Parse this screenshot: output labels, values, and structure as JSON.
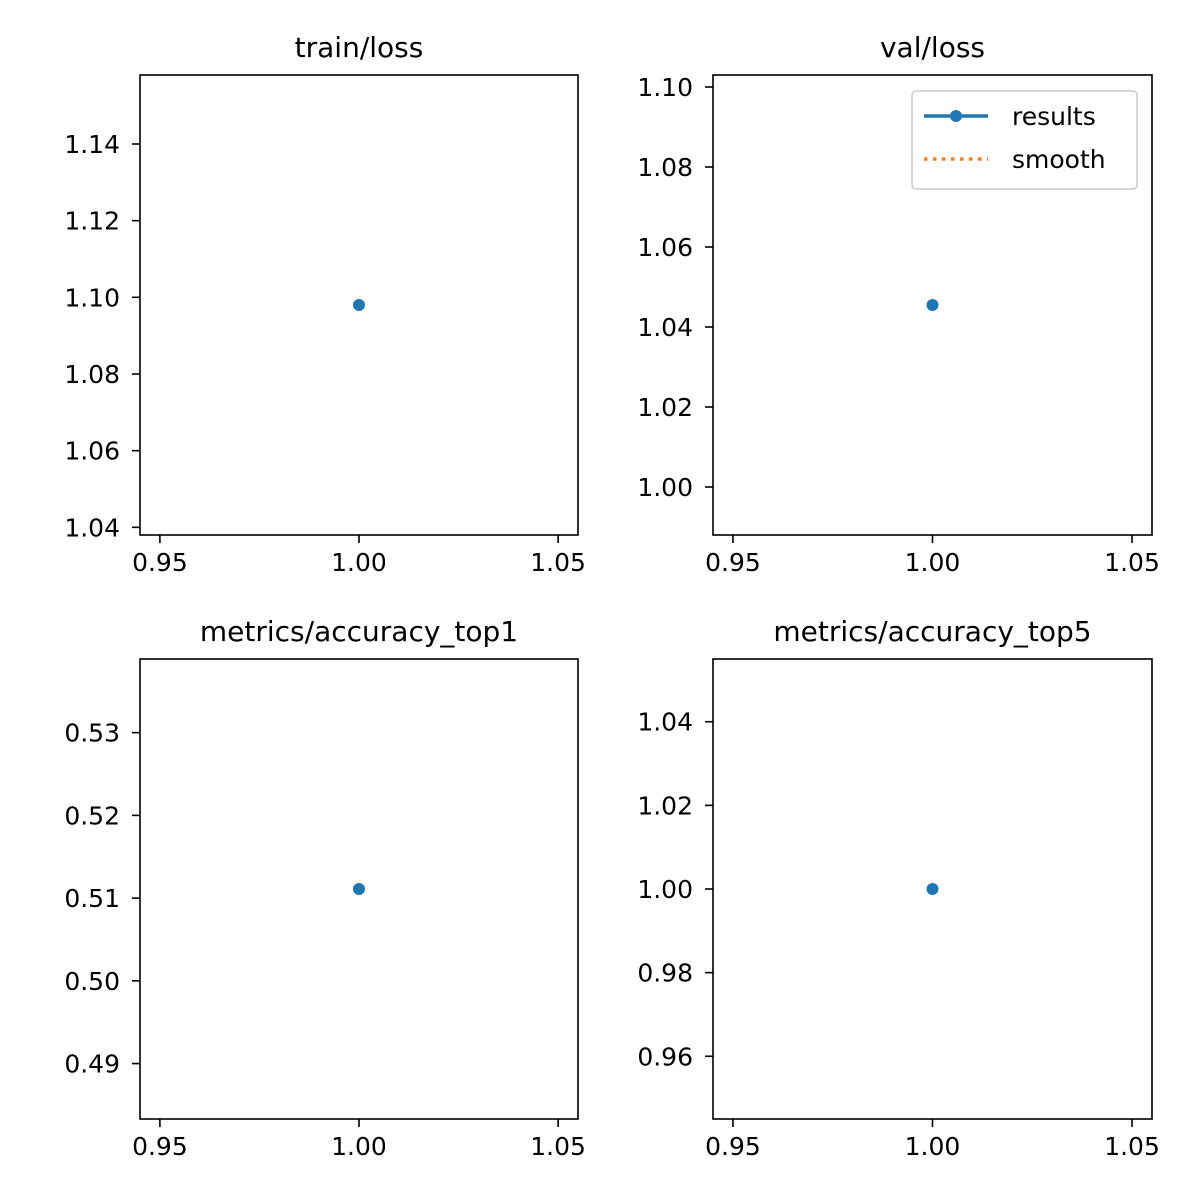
{
  "chart_data": [
    {
      "type": "line",
      "title": "train/loss",
      "xlabel": "",
      "ylabel": "",
      "x_ticks": [
        "0.95",
        "1.00",
        "1.05"
      ],
      "y_ticks": [
        "1.04",
        "1.06",
        "1.08",
        "1.10",
        "1.12",
        "1.14"
      ],
      "xlim": [
        0.945,
        1.055
      ],
      "ylim": [
        1.038,
        1.158
      ],
      "series": [
        {
          "name": "results",
          "color": "#1f77b4",
          "style": "solid-marker",
          "x": [
            1.0
          ],
          "y": [
            1.098
          ]
        },
        {
          "name": "smooth",
          "color": "#ff7f0e",
          "style": "dotted",
          "x": [
            1.0
          ],
          "y": [
            1.098
          ]
        }
      ],
      "legend": null,
      "grid": false
    },
    {
      "type": "line",
      "title": "val/loss",
      "xlabel": "",
      "ylabel": "",
      "x_ticks": [
        "0.95",
        "1.00",
        "1.05"
      ],
      "y_ticks": [
        "1.00",
        "1.02",
        "1.04",
        "1.06",
        "1.08",
        "1.10"
      ],
      "xlim": [
        0.945,
        1.055
      ],
      "ylim": [
        0.988,
        1.103
      ],
      "series": [
        {
          "name": "results",
          "color": "#1f77b4",
          "style": "solid-marker",
          "x": [
            1.0
          ],
          "y": [
            1.0455
          ]
        },
        {
          "name": "smooth",
          "color": "#ff7f0e",
          "style": "dotted",
          "x": [
            1.0
          ],
          "y": [
            1.0455
          ]
        }
      ],
      "legend": "top-right",
      "grid": false
    },
    {
      "type": "line",
      "title": "metrics/accuracy_top1",
      "xlabel": "",
      "ylabel": "",
      "x_ticks": [
        "0.95",
        "1.00",
        "1.05"
      ],
      "y_ticks": [
        "0.49",
        "0.50",
        "0.51",
        "0.52",
        "0.53"
      ],
      "xlim": [
        0.945,
        1.055
      ],
      "ylim": [
        0.4833,
        0.5389
      ],
      "series": [
        {
          "name": "results",
          "color": "#1f77b4",
          "style": "solid-marker",
          "x": [
            1.0
          ],
          "y": [
            0.5111
          ]
        },
        {
          "name": "smooth",
          "color": "#ff7f0e",
          "style": "dotted",
          "x": [
            1.0
          ],
          "y": [
            0.5111
          ]
        }
      ],
      "legend": null,
      "grid": false
    },
    {
      "type": "line",
      "title": "metrics/accuracy_top5",
      "xlabel": "",
      "ylabel": "",
      "x_ticks": [
        "0.95",
        "1.00",
        "1.05"
      ],
      "y_ticks": [
        "0.96",
        "0.98",
        "1.00",
        "1.02",
        "1.04"
      ],
      "xlim": [
        0.945,
        1.055
      ],
      "ylim": [
        0.945,
        1.055
      ],
      "series": [
        {
          "name": "results",
          "color": "#1f77b4",
          "style": "solid-marker",
          "x": [
            1.0
          ],
          "y": [
            1.0
          ]
        },
        {
          "name": "smooth",
          "color": "#ff7f0e",
          "style": "dotted",
          "x": [
            1.0
          ],
          "y": [
            1.0
          ]
        }
      ],
      "legend": null,
      "grid": false
    }
  ]
}
